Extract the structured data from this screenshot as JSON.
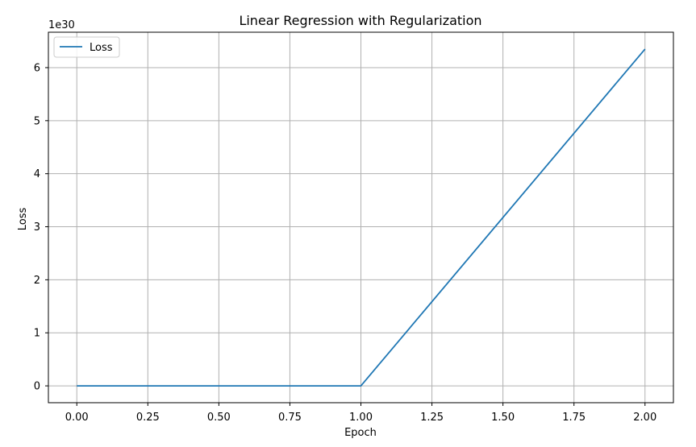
{
  "chart_data": {
    "type": "line",
    "title": "Linear Regression with Regularization",
    "xlabel": "Epoch",
    "ylabel": "Loss",
    "y_offset_label": "1e30",
    "x": [
      0,
      1,
      2
    ],
    "series": [
      {
        "name": "Loss",
        "values": [
          0,
          0,
          6.35
        ],
        "color": "#1f77b4"
      }
    ],
    "xlim": [
      -0.1,
      2.1
    ],
    "ylim": [
      -0.3175,
      6.6675
    ],
    "x_ticks": [
      0,
      0.25,
      0.5,
      0.75,
      1,
      1.25,
      1.5,
      1.75,
      2
    ],
    "x_tick_labels": [
      "0.00",
      "0.25",
      "0.50",
      "0.75",
      "1.00",
      "1.25",
      "1.50",
      "1.75",
      "2.00"
    ],
    "y_ticks": [
      0,
      1,
      2,
      3,
      4,
      5,
      6
    ],
    "y_tick_labels": [
      "0",
      "1",
      "2",
      "3",
      "4",
      "5",
      "6"
    ],
    "grid": true,
    "legend_position": "top-left"
  }
}
